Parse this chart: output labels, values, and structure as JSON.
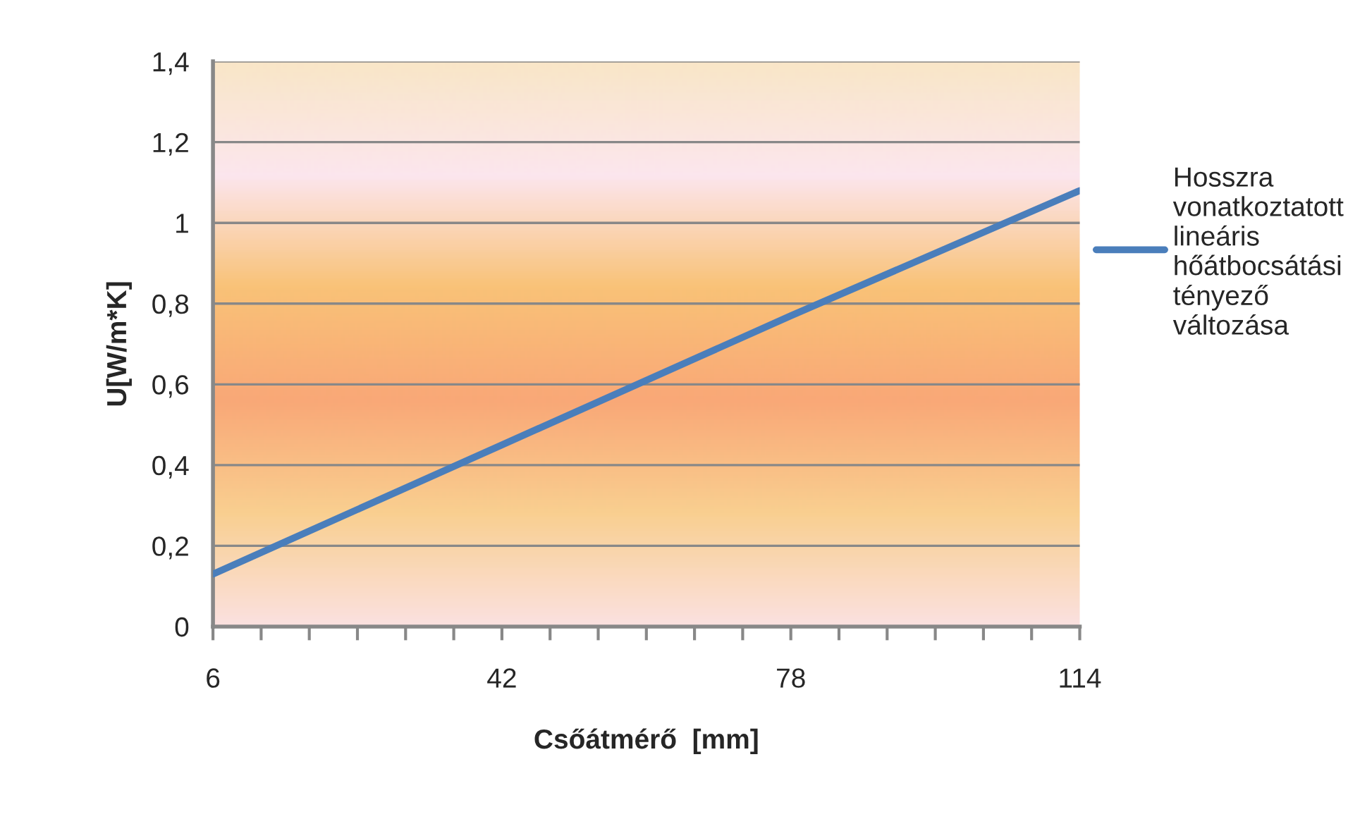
{
  "chart_data": {
    "type": "line",
    "xlabel": "Csőátmérő  [mm]",
    "ylabel": "U[W/m*K]",
    "x": [
      6,
      42,
      78,
      114
    ],
    "series": [
      {
        "name": "Hosszra vonatkoztatott lineáris hőátbocsátási tényező változása",
        "color": "#4a7ebb",
        "values": [
          0.13,
          0.45,
          0.77,
          1.08
        ]
      }
    ],
    "xlim": [
      6,
      114
    ],
    "xticks": [
      6,
      {
        "value": 12,
        "label": null
      },
      {
        "value": 18,
        "label": null
      },
      {
        "value": 24,
        "label": null
      },
      {
        "value": 30,
        "label": null
      },
      {
        "value": 36,
        "label": null
      },
      42,
      {
        "value": 48,
        "label": null
      },
      {
        "value": 54,
        "label": null
      },
      {
        "value": 60,
        "label": null
      },
      {
        "value": 66,
        "label": null
      },
      {
        "value": 72,
        "label": null
      },
      78,
      {
        "value": 84,
        "label": null
      },
      {
        "value": 90,
        "label": null
      },
      {
        "value": 96,
        "label": null
      },
      {
        "value": 102,
        "label": null
      },
      {
        "value": 108,
        "label": null
      },
      114
    ],
    "ylim": [
      0,
      1.4
    ],
    "yticks": [
      {
        "value": 0,
        "label": "0"
      },
      {
        "value": 0.2,
        "label": "0,2"
      },
      {
        "value": 0.4,
        "label": "0,4"
      },
      {
        "value": 0.6,
        "label": "0,6"
      },
      {
        "value": 0.8,
        "label": "0,8"
      },
      {
        "value": 1,
        "label": "1"
      },
      {
        "value": 1.2,
        "label": "1,2"
      },
      {
        "value": 1.4,
        "label": "1,4"
      }
    ],
    "grid": "y",
    "legend": "right",
    "marker": "none",
    "line_style": "solid"
  }
}
